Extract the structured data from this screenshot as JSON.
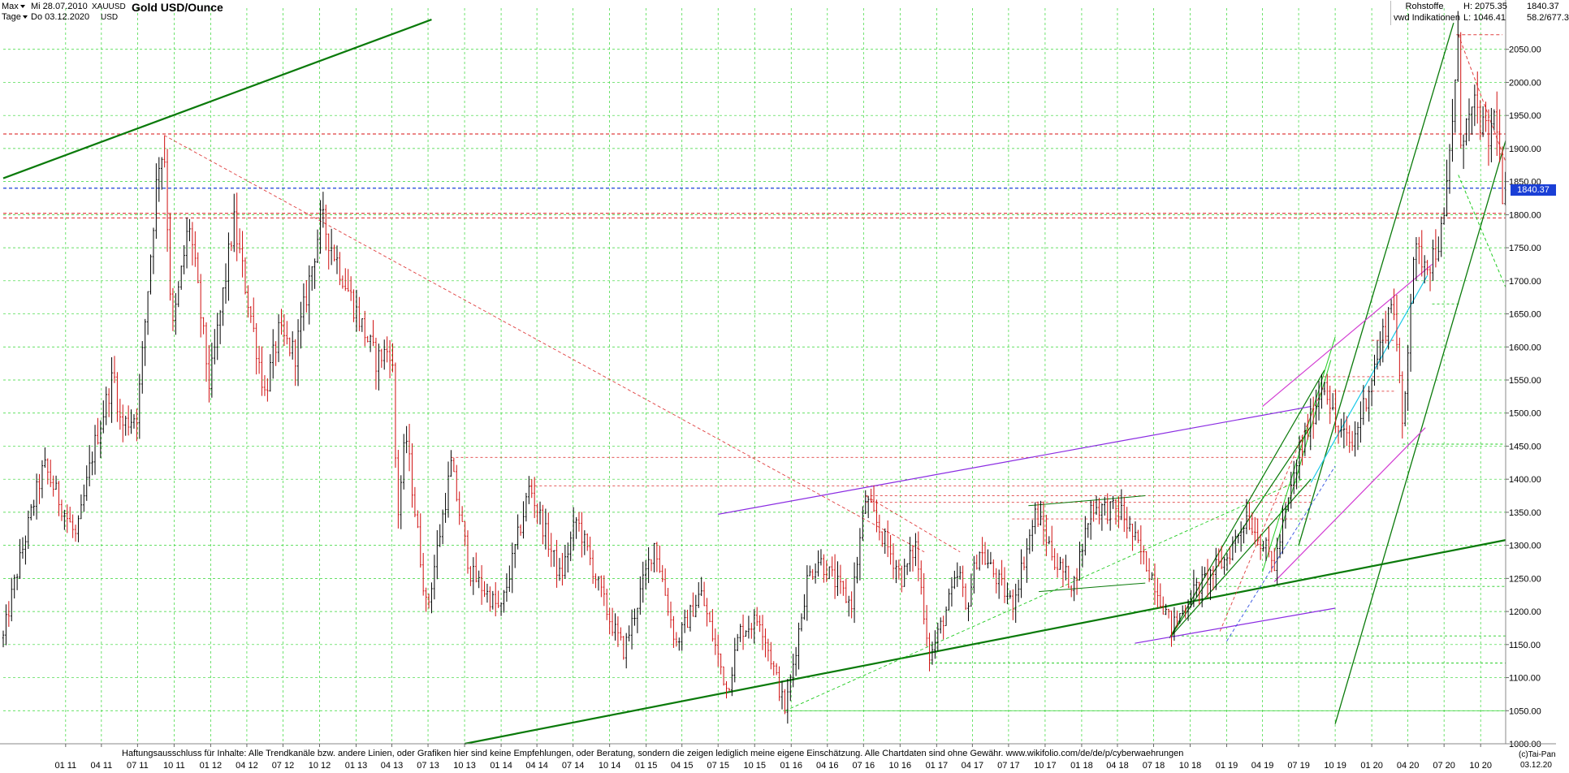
{
  "header": {
    "range_label": "Max",
    "interval_label": "Tage",
    "date_from": "Mi 28.07.2010",
    "date_to": "Do 03.12.2020",
    "symbol": "XAUUSD",
    "currency": "USD",
    "title": "Gold USD/Ounce"
  },
  "topright": {
    "category": "Rohstoffe",
    "source": "vwd Indikationen",
    "high": "H: 2075.35",
    "low": "L: 1046.41",
    "last": "1840.37",
    "change": "58.2/677.3"
  },
  "price_tag": "1840.37",
  "disclaimer": "Haftungsausschluss für Inhalte: Alle Trendkanäle bzw. andere Linien, oder Grafiken hier sind keine Empfehlungen, oder Beratung, sondern die zeigen lediglich meine eigene Einschätzung. Alle Chartdaten sind ohne Gewähr.  www.wikifolio.com/de/de/p/cyberwaehrungen",
  "copyright": "(c)Tai-Pan",
  "end_date": "03.12.20",
  "colors": {
    "grid": "#33d633",
    "up": "#000000",
    "down": "#d01010",
    "trend_green": "#0a7a0a",
    "purple": "#8a2be2",
    "magenta": "#d23cd2",
    "cyan": "#18c8e8",
    "red_dashed": "#e04040",
    "blue_dashed": "#1a3fd6",
    "light_green": "#22cc22"
  },
  "chart_data": {
    "type": "line",
    "title": "Gold USD/Ounce",
    "ylim": [
      1000,
      2100
    ],
    "xlim": [
      "2010-07-28",
      "2020-12-03"
    ],
    "grid": true,
    "ytick_labels": [
      "1000.00",
      "1050.00",
      "1100.00",
      "1150.00",
      "1200.00",
      "1250.00",
      "1300.00",
      "1350.00",
      "1400.00",
      "1450.00",
      "1500.00",
      "1550.00",
      "1600.00",
      "1650.00",
      "1700.00",
      "1750.00",
      "1800.00",
      "1850.00",
      "1900.00",
      "1950.00",
      "2000.00",
      "2050.00"
    ],
    "xtick_labels": [
      "01 11",
      "04 11",
      "07 11",
      "10 11",
      "01 12",
      "04 12",
      "07 12",
      "10 12",
      "01 13",
      "04 13",
      "07 13",
      "10 13",
      "01 14",
      "04 14",
      "07 14",
      "10 14",
      "01 15",
      "04 15",
      "07 15",
      "10 15",
      "01 16",
      "04 16",
      "07 16",
      "10 16",
      "01 17",
      "04 17",
      "07 17",
      "10 17",
      "01 18",
      "04 18",
      "07 18",
      "10 18",
      "01 19",
      "04 19",
      "07 19",
      "10 19",
      "01 20",
      "04 20",
      "07 20",
      "10 20"
    ],
    "xtick_dates": [
      "2011-01-01",
      "2011-04-01",
      "2011-07-01",
      "2011-10-01",
      "2012-01-01",
      "2012-04-01",
      "2012-07-01",
      "2012-10-01",
      "2013-01-01",
      "2013-04-01",
      "2013-07-01",
      "2013-10-01",
      "2014-01-01",
      "2014-04-01",
      "2014-07-01",
      "2014-10-01",
      "2015-01-01",
      "2015-04-01",
      "2015-07-01",
      "2015-10-01",
      "2016-01-01",
      "2016-04-01",
      "2016-07-01",
      "2016-10-01",
      "2017-01-01",
      "2017-04-01",
      "2017-07-01",
      "2017-10-01",
      "2018-01-01",
      "2018-04-01",
      "2018-07-01",
      "2018-10-01",
      "2019-01-01",
      "2019-04-01",
      "2019-07-01",
      "2019-10-01",
      "2020-01-01",
      "2020-04-01",
      "2020-07-01",
      "2020-10-01"
    ],
    "series": [
      {
        "x": [
          "2010-07-28",
          "2010-08-20",
          "2010-10-15",
          "2010-11-08",
          "2011-01-28",
          "2011-03-10",
          "2011-05-02",
          "2011-05-20",
          "2011-07-01",
          "2011-08-22",
          "2011-09-06",
          "2011-09-26",
          "2011-11-08",
          "2011-12-29",
          "2012-02-28",
          "2012-05-16",
          "2012-06-20",
          "2012-08-01",
          "2012-10-05",
          "2012-12-28",
          "2013-02-20",
          "2013-04-01",
          "2013-04-15",
          "2013-05-06",
          "2013-06-28",
          "2013-08-28",
          "2013-10-15",
          "2013-12-31",
          "2014-03-14",
          "2014-05-30",
          "2014-07-10",
          "2014-09-30",
          "2014-11-06",
          "2015-01-22",
          "2015-03-17",
          "2015-05-18",
          "2015-07-24",
          "2015-08-24",
          "2015-10-14",
          "2015-12-17",
          "2016-02-11",
          "2016-03-10",
          "2016-05-31",
          "2016-07-06",
          "2016-10-06",
          "2016-11-09",
          "2016-12-15",
          "2017-02-27",
          "2017-03-15",
          "2017-04-17",
          "2017-07-10",
          "2017-09-08",
          "2017-10-31",
          "2017-12-12",
          "2018-01-25",
          "2018-04-11",
          "2018-06-30",
          "2018-08-16",
          "2018-10-10",
          "2018-12-31",
          "2019-02-20",
          "2019-05-01",
          "2019-06-25",
          "2019-09-04",
          "2019-10-01",
          "2019-11-12",
          "2020-01-08",
          "2020-02-24",
          "2020-03-19",
          "2020-04-14",
          "2020-05-29",
          "2020-06-30",
          "2020-08-06",
          "2020-08-12",
          "2020-09-18",
          "2020-10-20",
          "2020-11-09",
          "2020-11-30",
          "2020-12-03"
        ],
        "y": [
          1160,
          1230,
          1370,
          1420,
          1310,
          1440,
          1560,
          1480,
          1500,
          1880,
          1900,
          1620,
          1790,
          1540,
          1790,
          1530,
          1620,
          1590,
          1795,
          1660,
          1580,
          1600,
          1340,
          1470,
          1200,
          1420,
          1260,
          1200,
          1390,
          1250,
          1340,
          1190,
          1140,
          1305,
          1150,
          1230,
          1080,
          1170,
          1190,
          1050,
          1250,
          1280,
          1210,
          1370,
          1250,
          1300,
          1130,
          1260,
          1200,
          1295,
          1210,
          1350,
          1270,
          1240,
          1360,
          1350,
          1250,
          1175,
          1230,
          1280,
          1345,
          1270,
          1420,
          1555,
          1480,
          1450,
          1570,
          1680,
          1470,
          1740,
          1730,
          1780,
          2060,
          1920,
          1960,
          1910,
          1960,
          1775,
          1840
        ]
      }
    ]
  }
}
